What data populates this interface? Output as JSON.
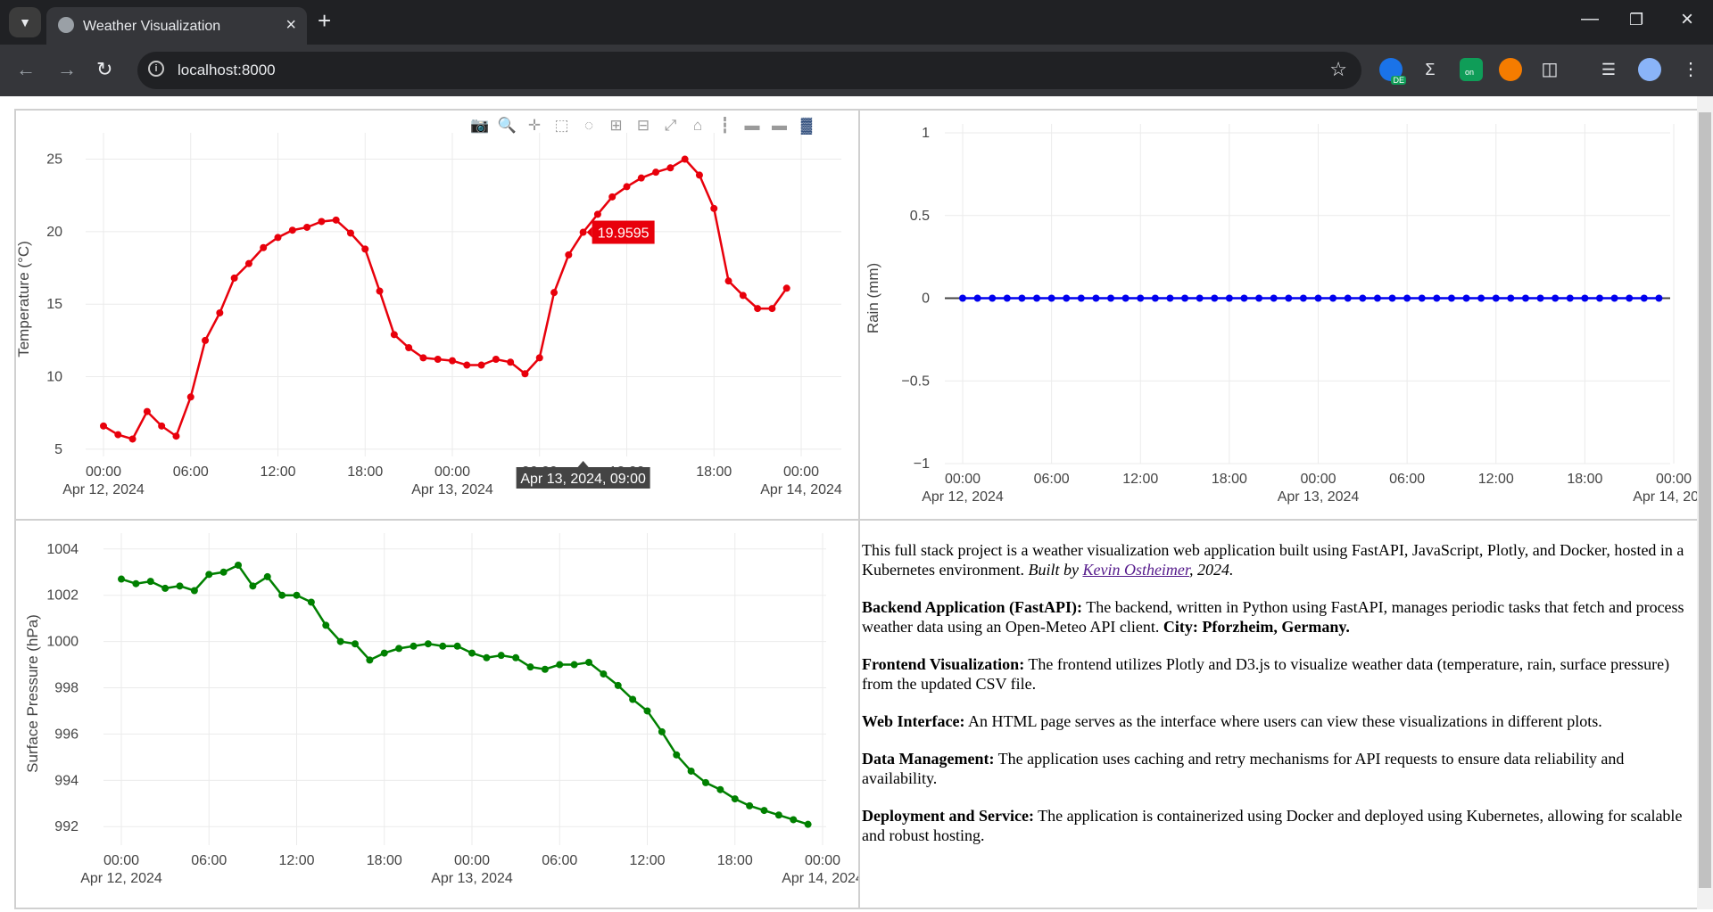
{
  "browser": {
    "tab_title": "Weather Visualization",
    "url": "localhost:8000",
    "extensions": [
      "translate-ext-icon",
      "text-ext-icon",
      "on-ext-icon",
      "orange-ext-icon",
      "puzzle-icon"
    ],
    "ext_badges": {
      "de": "DE",
      "on": "on"
    }
  },
  "plot_toolbar": [
    "camera-icon",
    "zoom-icon",
    "pan-icon",
    "box-select-icon",
    "lasso-icon",
    "zoom-in-icon",
    "zoom-out-icon",
    "autoscale-icon",
    "reset-axes-icon",
    "spike-lines-icon",
    "compare-hover-icon",
    "closest-hover-icon",
    "plotly-logo-icon"
  ],
  "x_ticks": [
    {
      "top": "00:00",
      "bottom": "Apr 12, 2024"
    },
    {
      "top": "06:00",
      "bottom": ""
    },
    {
      "top": "12:00",
      "bottom": ""
    },
    {
      "top": "18:00",
      "bottom": ""
    },
    {
      "top": "00:00",
      "bottom": "Apr 13, 2024"
    },
    {
      "top": "06:00",
      "bottom": ""
    },
    {
      "top": "12:00",
      "bottom": ""
    },
    {
      "top": "18:00",
      "bottom": ""
    },
    {
      "top": "00:00",
      "bottom": "Apr 14, 2024"
    }
  ],
  "chart_data": [
    {
      "type": "line",
      "ylabel": "Temperature (°C)",
      "color": "#e8000b",
      "ylim": [
        4.5,
        26.2
      ],
      "yticks": [
        5,
        10,
        15,
        20,
        25
      ],
      "x_hours": [
        0,
        1,
        2,
        3,
        4,
        5,
        6,
        7,
        8,
        9,
        10,
        11,
        12,
        13,
        14,
        15,
        16,
        17,
        18,
        19,
        20,
        21,
        22,
        23,
        24,
        25,
        26,
        27,
        28,
        29,
        30,
        31,
        32,
        33,
        34,
        35,
        36,
        37,
        38,
        39,
        40,
        41,
        42,
        43,
        44,
        45,
        46,
        47
      ],
      "values": [
        6.6,
        6.0,
        5.7,
        7.6,
        6.6,
        5.9,
        8.6,
        12.5,
        14.4,
        16.8,
        17.8,
        18.9,
        19.6,
        20.1,
        20.3,
        20.7,
        20.8,
        19.9,
        18.8,
        15.9,
        12.9,
        12.0,
        11.3,
        11.2,
        11.1,
        10.8,
        10.8,
        11.2,
        11.0,
        10.2,
        11.3,
        15.8,
        18.4,
        19.9595,
        21.2,
        22.4,
        23.1,
        23.7,
        24.1,
        24.4,
        25.0,
        23.9,
        21.6,
        16.6,
        15.6,
        14.7,
        14.7,
        16.1
      ],
      "hover": {
        "x_label": "Apr 13, 2024, 09:00",
        "value": "19.9595",
        "index": 33
      }
    },
    {
      "type": "line",
      "ylabel": "Rain (mm)",
      "color": "#0000ee",
      "ylim": [
        -1,
        1
      ],
      "yticks": [
        1,
        0.5,
        0,
        -0.5,
        -1
      ],
      "ytick_labels": [
        "1",
        "0.5",
        "0",
        "−0.5",
        "−1"
      ],
      "x_hours": [
        0,
        1,
        2,
        3,
        4,
        5,
        6,
        7,
        8,
        9,
        10,
        11,
        12,
        13,
        14,
        15,
        16,
        17,
        18,
        19,
        20,
        21,
        22,
        23,
        24,
        25,
        26,
        27,
        28,
        29,
        30,
        31,
        32,
        33,
        34,
        35,
        36,
        37,
        38,
        39,
        40,
        41,
        42,
        43,
        44,
        45,
        46,
        47
      ],
      "values": [
        0,
        0,
        0,
        0,
        0,
        0,
        0,
        0,
        0,
        0,
        0,
        0,
        0,
        0,
        0,
        0,
        0,
        0,
        0,
        0,
        0,
        0,
        0,
        0,
        0,
        0,
        0,
        0,
        0,
        0,
        0,
        0,
        0,
        0,
        0,
        0,
        0,
        0,
        0,
        0,
        0,
        0,
        0,
        0,
        0,
        0,
        0,
        0
      ]
    },
    {
      "type": "line",
      "ylabel": "Surface Pressure (hPa)",
      "color": "#008000",
      "ylim": [
        991.2,
        1004.3
      ],
      "yticks": [
        992,
        994,
        996,
        998,
        1000,
        1002,
        1004
      ],
      "x_hours": [
        0,
        1,
        2,
        3,
        4,
        5,
        6,
        7,
        8,
        9,
        10,
        11,
        12,
        13,
        14,
        15,
        16,
        17,
        18,
        19,
        20,
        21,
        22,
        23,
        24,
        25,
        26,
        27,
        28,
        29,
        30,
        31,
        32,
        33,
        34,
        35,
        36,
        37,
        38,
        39,
        40,
        41,
        42,
        43,
        44,
        45,
        46,
        47
      ],
      "values": [
        1002.7,
        1002.5,
        1002.6,
        1002.3,
        1002.4,
        1002.2,
        1002.9,
        1003.0,
        1003.3,
        1002.4,
        1002.8,
        1002.0,
        1002.0,
        1001.7,
        1000.7,
        1000.0,
        999.9,
        999.2,
        999.5,
        999.7,
        999.8,
        999.9,
        999.8,
        999.8,
        999.5,
        999.3,
        999.4,
        999.3,
        998.9,
        998.8,
        999.0,
        999.0,
        999.1,
        998.6,
        998.1,
        997.5,
        997.0,
        996.1,
        995.1,
        994.4,
        993.9,
        993.6,
        993.2,
        992.9,
        992.7,
        992.5,
        992.3,
        992.1
      ]
    }
  ],
  "description": {
    "p1_text": "This full stack project is a weather visualization web application built using FastAPI, JavaScript, Plotly, and Docker, hosted in a Kubernetes environment. ",
    "p1_built_by": "Built by ",
    "p1_author": "Kevin Ostheimer",
    "p1_year": ", 2024.",
    "p2_label": "Backend Application (FastAPI):",
    "p2_text": " The backend, written in Python using FastAPI, manages periodic tasks that fetch and process weather data using an Open-Meteo API client. ",
    "p2_city": "City: Pforzheim, Germany.",
    "p3_label": "Frontend Visualization:",
    "p3_text": " The frontend utilizes Plotly and D3.js to visualize weather data (temperature, rain, surface pressure) from the updated CSV file.",
    "p4_label": "Web Interface:",
    "p4_text": " An HTML page serves as the interface where users can view these visualizations in different plots.",
    "p5_label": "Data Management:",
    "p5_text": " The application uses caching and retry mechanisms for API requests to ensure data reliability and availability.",
    "p6_label": "Deployment and Service:",
    "p6_text": " The application is containerized using Docker and deployed using Kubernetes, allowing for scalable and robust hosting."
  }
}
